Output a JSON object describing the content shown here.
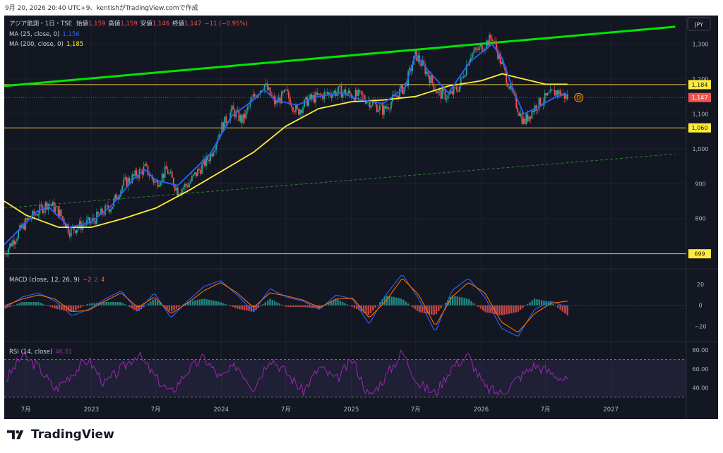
{
  "header": {
    "text": "9月 20, 2026 20:40 UTC+9、kentishがTradingView.comで作成"
  },
  "currency": "JPY",
  "legend": {
    "line1": {
      "name": "アジア航測・1日・TSE",
      "open_label": "始値",
      "open": "1,159",
      "high_label": "高値",
      "high": "1,159",
      "low_label": "安値",
      "low": "1,146",
      "close_label": "終値",
      "close": "1,147",
      "change": "−11 (−0.95%)"
    },
    "ma25": {
      "label": "MA (25, close, 0)",
      "value": "1,156"
    },
    "ma200": {
      "label": "MA (200, close, 0)",
      "value": "1,185"
    }
  },
  "macd_legend": {
    "label": "MACD (close, 12, 26, 9)",
    "v1": "−2",
    "v2": "2",
    "v3": "4"
  },
  "rsi_legend": {
    "label": "RSI (14, close)",
    "value": "46.81"
  },
  "dividend_marker": "D",
  "footer": {
    "brand": "TradingView"
  },
  "colors": {
    "background": "#131722",
    "ma25": "#2962ff",
    "ma200": "#ffeb3b",
    "trend": "#00e600",
    "up": "#26a69a",
    "down": "#ef5350",
    "macd": "#2962ff",
    "signal": "#ff6d00",
    "rsi": "#9c27b0"
  },
  "chart_data": [
    {
      "type": "candlestick",
      "title": "アジア航測・1日・TSE",
      "x_axis": {
        "ticks": [
          "7月",
          "2023",
          "7月",
          "2024",
          "7月",
          "2025",
          "7月",
          "2026",
          "7月",
          "2027"
        ]
      },
      "y_axis": {
        "ticks": [
          800,
          900,
          1000,
          1100,
          1200,
          1300
        ],
        "tick_labels": [
          "800",
          "900",
          "1,000",
          "1,100",
          "1,200",
          "1,300"
        ],
        "range": [
          670,
          1370
        ]
      },
      "price_labels": [
        {
          "value": 1184,
          "text": "1,184",
          "kind": "horizontal-level"
        },
        {
          "value": 1147,
          "text": "1,147",
          "kind": "last-price"
        },
        {
          "value": 1060,
          "text": "1,060",
          "kind": "horizontal-level"
        },
        {
          "value": 699,
          "text": "699",
          "kind": "horizontal-level"
        }
      ],
      "horizontal_levels": [
        1184,
        1060,
        699
      ],
      "trend_line": {
        "start": {
          "x": "2022-05",
          "y": 1180
        },
        "end": {
          "x": "2027-07",
          "y": 1350
        }
      },
      "dashed_trend_line": {
        "start": {
          "x": "2022-05",
          "y": 830
        },
        "end": {
          "x": "2027-07",
          "y": 985
        }
      },
      "close_path": [
        {
          "x": "2022-05",
          "y": 700
        },
        {
          "x": "2022-07",
          "y": 790
        },
        {
          "x": "2022-09",
          "y": 845
        },
        {
          "x": "2022-10",
          "y": 820
        },
        {
          "x": "2022-11",
          "y": 765
        },
        {
          "x": "2022-12",
          "y": 780
        },
        {
          "x": "2023-01",
          "y": 790
        },
        {
          "x": "2023-03",
          "y": 840
        },
        {
          "x": "2023-04",
          "y": 900
        },
        {
          "x": "2023-05",
          "y": 920
        },
        {
          "x": "2023-06",
          "y": 945
        },
        {
          "x": "2023-07",
          "y": 900
        },
        {
          "x": "2023-08",
          "y": 940
        },
        {
          "x": "2023-09",
          "y": 880
        },
        {
          "x": "2023-10",
          "y": 900
        },
        {
          "x": "2023-12",
          "y": 980
        },
        {
          "x": "2024-01",
          "y": 1060
        },
        {
          "x": "2024-02",
          "y": 1110
        },
        {
          "x": "2024-03",
          "y": 1080
        },
        {
          "x": "2024-04",
          "y": 1150
        },
        {
          "x": "2024-05",
          "y": 1185
        },
        {
          "x": "2024-06",
          "y": 1130
        },
        {
          "x": "2024-07",
          "y": 1160
        },
        {
          "x": "2024-08",
          "y": 1105
        },
        {
          "x": "2024-09",
          "y": 1140
        },
        {
          "x": "2024-10",
          "y": 1150
        },
        {
          "x": "2024-11",
          "y": 1160
        },
        {
          "x": "2024-12",
          "y": 1165
        },
        {
          "x": "2025-01",
          "y": 1155
        },
        {
          "x": "2025-02",
          "y": 1150
        },
        {
          "x": "2025-03",
          "y": 1130
        },
        {
          "x": "2025-04",
          "y": 1110
        },
        {
          "x": "2025-05",
          "y": 1145
        },
        {
          "x": "2025-06",
          "y": 1180
        },
        {
          "x": "2025-07",
          "y": 1270
        },
        {
          "x": "2025-08",
          "y": 1220
        },
        {
          "x": "2025-09",
          "y": 1160
        },
        {
          "x": "2025-10",
          "y": 1150
        },
        {
          "x": "2025-11",
          "y": 1180
        },
        {
          "x": "2025-12",
          "y": 1270
        },
        {
          "x": "2026-01",
          "y": 1290
        },
        {
          "x": "2026-02",
          "y": 1320
        },
        {
          "x": "2026-03",
          "y": 1240
        },
        {
          "x": "2026-04",
          "y": 1150
        },
        {
          "x": "2026-05",
          "y": 1075
        },
        {
          "x": "2026-06",
          "y": 1120
        },
        {
          "x": "2026-07",
          "y": 1145
        },
        {
          "x": "2026-08",
          "y": 1165
        },
        {
          "x": "2026-09",
          "y": 1147
        }
      ],
      "ma25_path": [
        {
          "x": "2022-05",
          "y": 725
        },
        {
          "x": "2022-08",
          "y": 820
        },
        {
          "x": "2022-09",
          "y": 835
        },
        {
          "x": "2022-11",
          "y": 775
        },
        {
          "x": "2023-01",
          "y": 790
        },
        {
          "x": "2023-03",
          "y": 840
        },
        {
          "x": "2023-05",
          "y": 915
        },
        {
          "x": "2023-06",
          "y": 940
        },
        {
          "x": "2023-07",
          "y": 910
        },
        {
          "x": "2023-09",
          "y": 895
        },
        {
          "x": "2023-12",
          "y": 985
        },
        {
          "x": "2024-02",
          "y": 1095
        },
        {
          "x": "2024-04",
          "y": 1140
        },
        {
          "x": "2024-05",
          "y": 1170
        },
        {
          "x": "2024-06",
          "y": 1140
        },
        {
          "x": "2024-08",
          "y": 1125
        },
        {
          "x": "2024-10",
          "y": 1150
        },
        {
          "x": "2024-12",
          "y": 1160
        },
        {
          "x": "2025-02",
          "y": 1140
        },
        {
          "x": "2025-04",
          "y": 1130
        },
        {
          "x": "2025-06",
          "y": 1175
        },
        {
          "x": "2025-07",
          "y": 1270
        },
        {
          "x": "2025-08",
          "y": 1230
        },
        {
          "x": "2025-10",
          "y": 1160
        },
        {
          "x": "2025-12",
          "y": 1250
        },
        {
          "x": "2026-02",
          "y": 1300
        },
        {
          "x": "2026-03",
          "y": 1260
        },
        {
          "x": "2026-04",
          "y": 1170
        },
        {
          "x": "2026-05",
          "y": 1100
        },
        {
          "x": "2026-06",
          "y": 1115
        },
        {
          "x": "2026-08",
          "y": 1150
        },
        {
          "x": "2026-09",
          "y": 1156
        }
      ],
      "ma200_path": [
        {
          "x": "2022-05",
          "y": 850
        },
        {
          "x": "2022-07",
          "y": 810
        },
        {
          "x": "2022-10",
          "y": 775
        },
        {
          "x": "2023-01",
          "y": 775
        },
        {
          "x": "2023-04",
          "y": 800
        },
        {
          "x": "2023-07",
          "y": 830
        },
        {
          "x": "2023-10",
          "y": 880
        },
        {
          "x": "2024-01",
          "y": 935
        },
        {
          "x": "2024-04",
          "y": 990
        },
        {
          "x": "2024-07",
          "y": 1065
        },
        {
          "x": "2024-10",
          "y": 1115
        },
        {
          "x": "2025-01",
          "y": 1135
        },
        {
          "x": "2025-04",
          "y": 1140
        },
        {
          "x": "2025-07",
          "y": 1150
        },
        {
          "x": "2025-10",
          "y": 1180
        },
        {
          "x": "2026-01",
          "y": 1195
        },
        {
          "x": "2026-03",
          "y": 1215
        },
        {
          "x": "2026-05",
          "y": 1200
        },
        {
          "x": "2026-07",
          "y": 1185
        },
        {
          "x": "2026-09",
          "y": 1185
        }
      ]
    },
    {
      "type": "line",
      "title": "MACD (close, 12, 26, 9)",
      "y_axis": {
        "ticks": [
          -20,
          0,
          20
        ],
        "range": [
          -32,
          33
        ]
      },
      "series": [
        {
          "name": "MACD",
          "values": [
            -2,
            8,
            12,
            4,
            -10,
            -4,
            6,
            14,
            -6,
            12,
            -12,
            4,
            18,
            24,
            10,
            -6,
            16,
            8,
            4,
            -4,
            10,
            6,
            -18,
            10,
            30,
            6,
            -26,
            14,
            26,
            8,
            -22,
            -30,
            -4,
            4,
            -2
          ]
        },
        {
          "name": "Signal",
          "values": [
            0,
            6,
            10,
            6,
            -6,
            -5,
            4,
            12,
            -2,
            8,
            -8,
            2,
            14,
            22,
            12,
            -2,
            12,
            9,
            5,
            -2,
            6,
            7,
            -12,
            4,
            26,
            10,
            -20,
            8,
            22,
            12,
            -16,
            -26,
            -8,
            2,
            4
          ]
        }
      ]
    },
    {
      "type": "line",
      "title": "RSI (14, close)",
      "y_axis": {
        "ticks": [
          40,
          60,
          80
        ],
        "tick_labels": [
          "40.00",
          "60.00",
          "80.00"
        ],
        "range": [
          27,
          86
        ],
        "bands": [
          30,
          70
        ]
      },
      "series": [
        {
          "name": "RSI",
          "values": [
            48,
            74,
            62,
            38,
            55,
            70,
            44,
            60,
            76,
            52,
            34,
            58,
            72,
            50,
            64,
            40,
            72,
            56,
            36,
            62,
            48,
            70,
            30,
            52,
            78,
            44,
            34,
            62,
            74,
            40,
            34,
            50,
            64,
            56,
            47
          ]
        }
      ]
    }
  ]
}
